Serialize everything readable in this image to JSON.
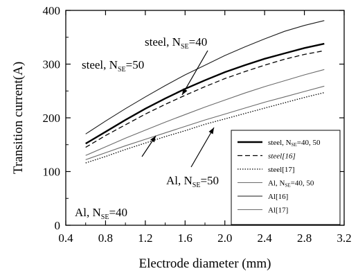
{
  "chart_data": {
    "type": "line",
    "xlabel": "Electrode diameter (mm)",
    "ylabel": "Transition current(A)",
    "xlim": [
      0.4,
      3.2
    ],
    "ylim": [
      0,
      400
    ],
    "xticks": [
      "0.4",
      "0.8",
      "1.2",
      "1.6",
      "2.0",
      "2.4",
      "2.8",
      "3.2"
    ],
    "yticks": [
      "0",
      "100",
      "200",
      "300",
      "400"
    ],
    "x": [
      0.6,
      0.8,
      1.0,
      1.2,
      1.4,
      1.6,
      1.8,
      2.0,
      2.2,
      2.4,
      2.6,
      2.8,
      3.0
    ],
    "series": [
      {
        "name": "steel, N_SE=40, 50",
        "style": "thick",
        "color": "#000000",
        "values": [
          152,
          174,
          196,
          217,
          236,
          254,
          270,
          285,
          298,
          310,
          320,
          330,
          338
        ]
      },
      {
        "name": "steel[16]",
        "style": "dashed",
        "color": "#000000",
        "values": [
          145,
          167,
          187,
          207,
          225,
          242,
          258,
          273,
          286,
          298,
          309,
          318,
          325
        ]
      },
      {
        "name": "steel[17]",
        "style": "dotted",
        "color": "#000000",
        "values": [
          116,
          128,
          141,
          153,
          165,
          176,
          188,
          198,
          208,
          218,
          228,
          238,
          247
        ]
      },
      {
        "name": "Al, N_SE=40, 50",
        "style": "thin",
        "color": "#6a6a6a",
        "values": [
          130,
          146,
          162,
          177,
          192,
          206,
          220,
          233,
          246,
          258,
          269,
          280,
          290
        ]
      },
      {
        "name": "Al[16]",
        "style": "thin",
        "color": "#1a1a1a",
        "values": [
          170,
          194,
          217,
          239,
          260,
          280,
          298,
          316,
          332,
          347,
          361,
          372,
          381
        ]
      },
      {
        "name": "Al[17]",
        "style": "thin",
        "color": "#6a6a6a",
        "values": [
          122,
          135,
          148,
          160,
          172,
          184,
          196,
          207,
          218,
          229,
          239,
          249,
          259
        ]
      }
    ],
    "annotations": [
      {
        "id": "ann-steel-40",
        "main": "steel, N",
        "sub": "SE",
        "tail": "=40"
      },
      {
        "id": "ann-steel-50",
        "main": "steel, N",
        "sub": "SE",
        "tail": "=50"
      },
      {
        "id": "ann-al-50",
        "main": "Al,  N",
        "sub": "SE",
        "tail": "=50"
      },
      {
        "id": "ann-al-40",
        "main": "Al,  N",
        "sub": "SE",
        "tail": "=40"
      }
    ],
    "legend": {
      "position": "bottom-right",
      "entries": [
        {
          "main": "steel, N",
          "sub": "SE",
          "tail": "=40, 50",
          "italic": false
        },
        {
          "main": "steel[16]",
          "sub": "",
          "tail": "",
          "italic": true
        },
        {
          "main": "steel[17]",
          "sub": "",
          "tail": "",
          "italic": false
        },
        {
          "main": "Al, N",
          "sub": "SE",
          "tail": "=40, 50",
          "italic": false
        },
        {
          "main": "Al[16]",
          "sub": "",
          "tail": "",
          "italic": false
        },
        {
          "main": "Al[17]",
          "sub": "",
          "tail": "",
          "italic": false
        }
      ]
    },
    "grid": false
  }
}
